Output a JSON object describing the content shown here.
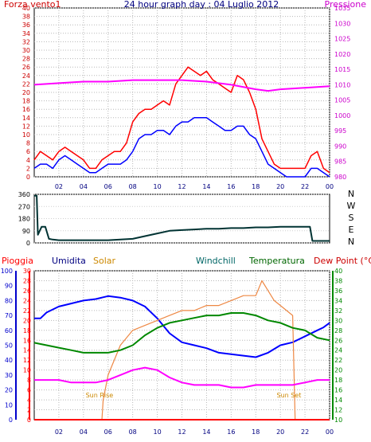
{
  "chart_data": [
    {
      "type": "line",
      "title": "24 hour graph day : 04 Luglio 2012",
      "left_label": "Forza vento1",
      "right_label": "Pressione",
      "x_ticks": [
        "02",
        "04",
        "06",
        "08",
        "10",
        "12",
        "14",
        "16",
        "18",
        "20",
        "22",
        "00"
      ],
      "y_left_ticks": [
        0,
        2,
        4,
        6,
        8,
        10,
        12,
        14,
        16,
        18,
        20,
        22,
        24,
        26,
        28,
        30,
        32,
        34,
        36,
        38,
        40
      ],
      "y_left_range": [
        0,
        40
      ],
      "y_right_ticks": [
        980,
        985,
        990,
        995,
        1000,
        1005,
        1010,
        1015,
        1020,
        1025,
        1030,
        1035
      ],
      "y_right_range": [
        980,
        1035
      ],
      "grid": true,
      "colors": {
        "gust": "#ff0000",
        "wind": "#0000ff",
        "pressure": "#ff00ff",
        "axis_left": "#cc0000",
        "axis_right": "#cc00cc",
        "title": "#000080"
      },
      "series": [
        {
          "key": "gust",
          "axis": "left",
          "x": [
            0,
            0.5,
            1,
            1.5,
            2,
            2.5,
            3,
            3.5,
            4,
            4.5,
            5,
            5.5,
            6,
            6.5,
            7,
            7.5,
            8,
            8.5,
            9,
            9.5,
            10,
            10.5,
            11,
            11.5,
            12,
            12.5,
            13,
            13.5,
            14,
            14.5,
            15,
            15.5,
            16,
            16.5,
            17,
            17.5,
            18,
            18.5,
            19,
            19.5,
            20,
            20.5,
            21,
            21.5,
            22,
            22.5,
            23,
            23.5,
            24
          ],
          "y": [
            4,
            6,
            5,
            4,
            6,
            7,
            6,
            5,
            4,
            2,
            2,
            4,
            5,
            6,
            6,
            8,
            13,
            15,
            16,
            16,
            17,
            18,
            17,
            22,
            24,
            26,
            25,
            24,
            25,
            23,
            22,
            21,
            20,
            24,
            23,
            20,
            16,
            9,
            6,
            3,
            2,
            2,
            2,
            2,
            2,
            5,
            6,
            2,
            1
          ]
        },
        {
          "key": "wind",
          "axis": "left",
          "x": [
            0,
            0.5,
            1,
            1.5,
            2,
            2.5,
            3,
            3.5,
            4,
            4.5,
            5,
            5.5,
            6,
            6.5,
            7,
            7.5,
            8,
            8.5,
            9,
            9.5,
            10,
            10.5,
            11,
            11.5,
            12,
            12.5,
            13,
            13.5,
            14,
            14.5,
            15,
            15.5,
            16,
            16.5,
            17,
            17.5,
            18,
            18.5,
            19,
            19.5,
            20,
            20.5,
            21,
            21.5,
            22,
            22.5,
            23,
            23.5,
            24
          ],
          "y": [
            2,
            3,
            3,
            2,
            4,
            5,
            4,
            3,
            2,
            1,
            1,
            2,
            3,
            3,
            3,
            4,
            6,
            9,
            10,
            10,
            11,
            11,
            10,
            12,
            13,
            13,
            14,
            14,
            14,
            13,
            12,
            11,
            11,
            12,
            12,
            10,
            9,
            6,
            3,
            2,
            1,
            0,
            0,
            0,
            0,
            2,
            2,
            1,
            0
          ]
        },
        {
          "key": "pressure",
          "axis": "right",
          "x": [
            0,
            2,
            4,
            6,
            8,
            10,
            12,
            14,
            16,
            18,
            19,
            20,
            22,
            24
          ],
          "y": [
            1010,
            1010.5,
            1011,
            1011,
            1011.5,
            1011.5,
            1011.5,
            1011,
            1010,
            1008.5,
            1008,
            1008.5,
            1009,
            1009.5
          ]
        }
      ]
    },
    {
      "type": "line",
      "title": "",
      "y_left_ticks": [
        0,
        90,
        180,
        270,
        360
      ],
      "y_left_range": [
        0,
        360
      ],
      "compass": [
        "N",
        "W",
        "S",
        "E",
        "N"
      ],
      "colors": {
        "direction": "#003333"
      },
      "series": [
        {
          "key": "direction",
          "x": [
            0,
            0.2,
            0.3,
            0.6,
            0.9,
            1.2,
            1.5,
            2,
            3,
            4,
            5,
            6,
            7,
            8,
            9,
            10,
            11,
            12,
            13,
            14,
            15,
            16,
            17,
            18,
            19,
            20,
            21,
            22,
            22.4,
            22.6,
            23,
            24
          ],
          "y": [
            350,
            350,
            60,
            120,
            120,
            30,
            25,
            20,
            20,
            20,
            20,
            20,
            25,
            30,
            50,
            70,
            90,
            95,
            100,
            105,
            105,
            110,
            110,
            115,
            115,
            120,
            120,
            120,
            120,
            15,
            15,
            15
          ]
        }
      ]
    },
    {
      "type": "line",
      "title": "",
      "legend": [
        "Pioggia",
        "Umidita",
        "Solar",
        "Windchill",
        "Temperatura",
        "Dew Point (°C)"
      ],
      "legend_colors": [
        "#ff0000",
        "#000080",
        "#cc8800",
        "#006666",
        "#006600",
        "#cc0000"
      ],
      "annotations": [
        "Sun Rise",
        "Sun Set"
      ],
      "x_ticks": [
        "02",
        "04",
        "06",
        "08",
        "10",
        "12",
        "14",
        "16",
        "18",
        "20",
        "22",
        "00"
      ],
      "y_humidity_ticks": [
        0,
        10,
        20,
        30,
        40,
        50,
        60,
        70,
        80,
        90,
        100
      ],
      "y_rain_ticks": [
        0,
        2,
        4,
        6,
        8,
        10,
        12,
        14,
        16,
        18,
        20,
        22,
        24,
        26,
        28,
        30
      ],
      "y_temp_ticks": [
        10,
        12,
        14,
        16,
        18,
        20,
        22,
        24,
        26,
        28,
        30,
        32,
        34,
        36,
        38,
        40
      ],
      "grid": true,
      "colors": {
        "humidity": "#0000ff",
        "solar": "#ee8844",
        "temperature": "#008800",
        "dewpoint": "#ff00ff",
        "rain": "#ff0000"
      },
      "series": [
        {
          "key": "humidity",
          "axis": "humidity_0_100",
          "x": [
            0,
            0.5,
            1,
            2,
            3,
            4,
            5,
            6,
            7,
            8,
            9,
            10,
            11,
            12,
            13,
            14,
            15,
            16,
            17,
            18,
            19,
            20,
            21,
            22,
            23,
            23.5,
            24
          ],
          "y": [
            68,
            68,
            72,
            76,
            78,
            80,
            81,
            83,
            82,
            80,
            76,
            68,
            58,
            52,
            50,
            48,
            45,
            44,
            43,
            42,
            45,
            50,
            52,
            56,
            60,
            62,
            65
          ]
        },
        {
          "key": "solar",
          "axis": "rain_0_30",
          "x": [
            0,
            5.5,
            5.6,
            6,
            7,
            8,
            9,
            10,
            11,
            12,
            13,
            14,
            15,
            16,
            17,
            18,
            18.5,
            19,
            19.5,
            20,
            21,
            21.2,
            22,
            24
          ],
          "y": [
            0,
            0,
            4,
            9,
            15,
            18,
            19,
            20,
            21,
            22,
            22,
            23,
            23,
            24,
            25,
            25,
            28,
            26,
            24,
            23,
            21,
            0,
            0,
            0
          ]
        },
        {
          "key": "temperature",
          "axis": "temp_10_40",
          "x": [
            0,
            1,
            2,
            3,
            4,
            5,
            6,
            7,
            8,
            9,
            10,
            11,
            12,
            13,
            14,
            15,
            16,
            17,
            18,
            19,
            20,
            21,
            22,
            23,
            24
          ],
          "y": [
            25.5,
            25,
            24.5,
            24,
            23.5,
            23.5,
            23.5,
            24,
            25,
            27,
            28.5,
            29.5,
            30,
            30.5,
            31,
            31,
            31.5,
            31.5,
            31,
            30,
            29.5,
            28.5,
            28,
            26.5,
            26
          ]
        },
        {
          "key": "dewpoint",
          "axis": "temp_10_40",
          "x": [
            0,
            1,
            2,
            3,
            4,
            5,
            6,
            7,
            8,
            9,
            10,
            11,
            12,
            13,
            14,
            15,
            16,
            17,
            18,
            19,
            20,
            21,
            22,
            23,
            24
          ],
          "y": [
            18,
            18,
            18,
            17.5,
            17.5,
            17.5,
            18,
            19,
            20,
            20.5,
            20,
            18.5,
            17.5,
            17,
            17,
            17,
            16.5,
            16.5,
            17,
            17,
            17,
            17,
            17.5,
            18,
            18
          ]
        },
        {
          "key": "rain",
          "axis": "rain_0_30",
          "x": [
            0,
            24
          ],
          "y": [
            0,
            0
          ]
        }
      ]
    }
  ]
}
